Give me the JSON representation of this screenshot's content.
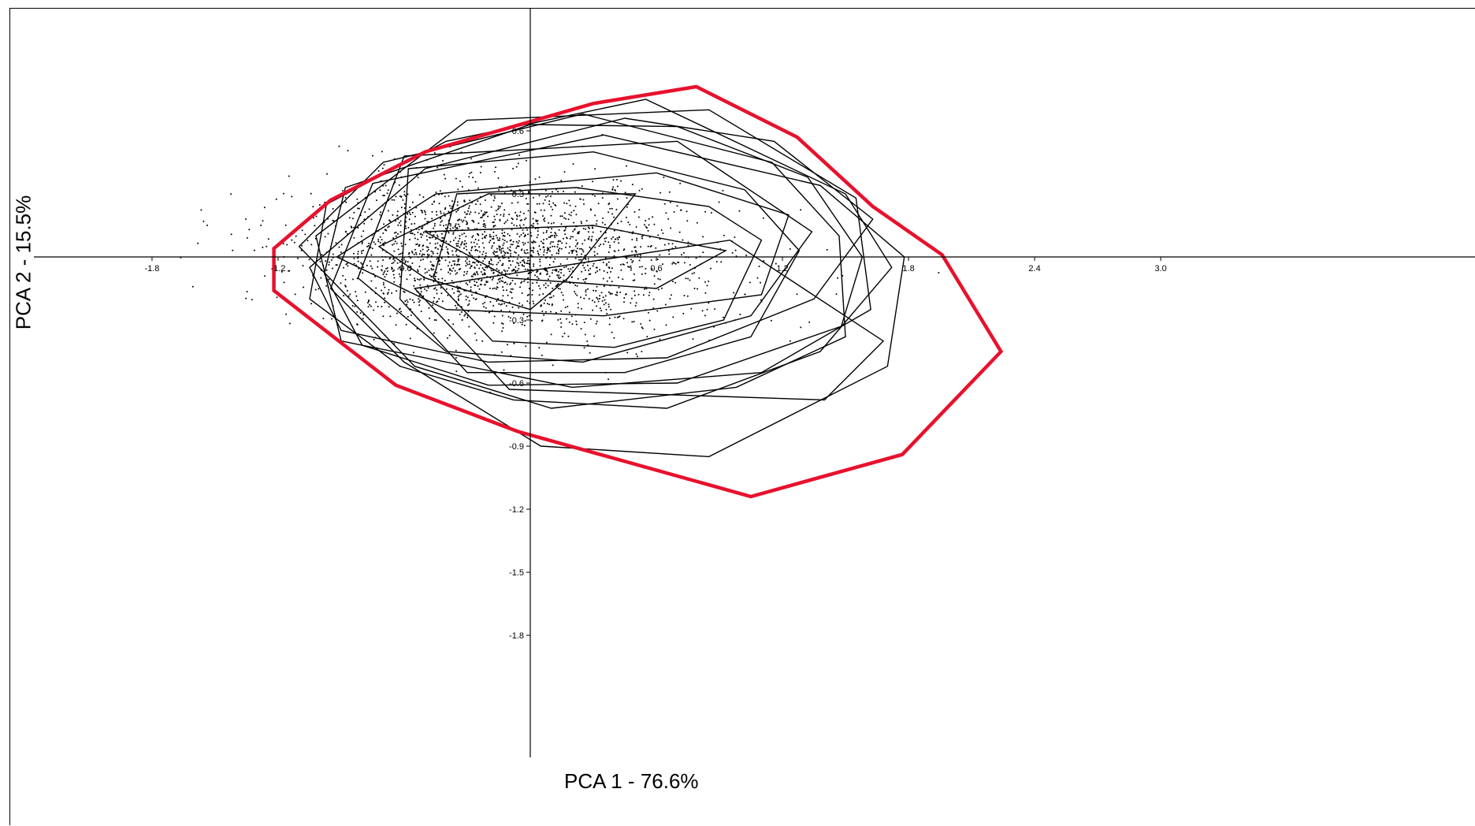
{
  "chart_data": {
    "type": "scatter",
    "title": "",
    "xlabel": "PCA 1 - 76.6%",
    "ylabel": "PCA 2 - 15.5%",
    "xlim": [
      -2.4,
      3.4
    ],
    "ylim": [
      -2.0,
      0.9
    ],
    "x_ticks": [
      "-1.8",
      "-1.2",
      "-0.6",
      "0.6",
      "1.2",
      "1.8",
      "2.4",
      "3.0"
    ],
    "y_ticks": [
      "0.6",
      "0.3",
      "-0.3",
      "-0.6",
      "-0.9",
      "-1.2",
      "-1.5",
      "-1.8"
    ],
    "grid": false,
    "legend": "none",
    "scatter_cloud": {
      "approx_points": 2200,
      "center": [
        -0.2,
        0.02
      ],
      "spread": [
        0.45,
        0.17
      ]
    },
    "hull_color": "#e8112d",
    "outer_hull": [
      [
        -1.22,
        0.04
      ],
      [
        -0.95,
        0.27
      ],
      [
        -0.5,
        0.5
      ],
      [
        0.3,
        0.73
      ],
      [
        0.79,
        0.81
      ],
      [
        1.27,
        0.57
      ],
      [
        1.63,
        0.24
      ],
      [
        1.96,
        0.01
      ],
      [
        2.24,
        -0.45
      ],
      [
        1.77,
        -0.94
      ],
      [
        1.05,
        -1.14
      ],
      [
        -0.06,
        -0.83
      ],
      [
        -0.64,
        -0.61
      ],
      [
        -1.22,
        -0.16
      ]
    ],
    "group_hulls": [
      [
        [
          -0.35,
          0.3
        ],
        [
          0.22,
          0.33
        ],
        [
          0.85,
          0.24
        ],
        [
          1.1,
          0.08
        ],
        [
          0.92,
          -0.3
        ],
        [
          0.4,
          -0.43
        ],
        [
          -0.18,
          -0.4
        ],
        [
          -0.46,
          -0.1
        ]
      ],
      [
        [
          -0.58,
          0.42
        ],
        [
          0.3,
          0.5
        ],
        [
          1.02,
          0.32
        ],
        [
          1.28,
          0.03
        ],
        [
          1.05,
          -0.38
        ],
        [
          0.45,
          -0.55
        ],
        [
          -0.3,
          -0.55
        ],
        [
          -0.62,
          -0.2
        ]
      ],
      [
        [
          -0.88,
          0.33
        ],
        [
          0.0,
          0.63
        ],
        [
          0.7,
          0.62
        ],
        [
          1.32,
          0.38
        ],
        [
          1.58,
          0.0
        ],
        [
          1.48,
          -0.33
        ],
        [
          0.7,
          -0.6
        ],
        [
          -0.2,
          -0.61
        ],
        [
          -0.8,
          -0.42
        ],
        [
          -0.98,
          -0.08
        ]
      ],
      [
        [
          -0.97,
          0.25
        ],
        [
          -0.4,
          0.55
        ],
        [
          0.55,
          0.75
        ],
        [
          1.5,
          0.3
        ],
        [
          1.72,
          -0.05
        ],
        [
          1.38,
          -0.45
        ],
        [
          0.65,
          -0.72
        ],
        [
          -0.08,
          -0.68
        ],
        [
          -0.62,
          -0.52
        ],
        [
          -1.05,
          -0.2
        ]
      ],
      [
        [
          -1.1,
          0.05
        ],
        [
          -0.7,
          0.45
        ],
        [
          0.25,
          0.68
        ],
        [
          1.15,
          0.45
        ],
        [
          1.47,
          0.1
        ],
        [
          1.5,
          -0.38
        ],
        [
          0.98,
          -0.62
        ],
        [
          0.1,
          -0.72
        ],
        [
          -0.55,
          -0.52
        ]
      ],
      [
        [
          -0.75,
          0.35
        ],
        [
          0.35,
          0.58
        ],
        [
          1.38,
          0.34
        ],
        [
          1.78,
          0.0
        ],
        [
          1.7,
          -0.52
        ],
        [
          0.85,
          -0.95
        ],
        [
          0.05,
          -0.9
        ],
        [
          -0.6,
          -0.5
        ],
        [
          -0.95,
          -0.15
        ]
      ],
      [
        [
          -0.6,
          0.48
        ],
        [
          0.7,
          0.55
        ],
        [
          1.34,
          0.12
        ],
        [
          1.05,
          -0.28
        ],
        [
          0.25,
          -0.5
        ],
        [
          -0.4,
          -0.45
        ],
        [
          -0.82,
          -0.1
        ]
      ],
      [
        [
          -0.92,
          0.0
        ],
        [
          -0.45,
          0.3
        ],
        [
          0.6,
          0.4
        ],
        [
          1.23,
          0.2
        ],
        [
          1.1,
          -0.18
        ],
        [
          0.35,
          -0.28
        ],
        [
          -0.4,
          -0.25
        ]
      ],
      [
        [
          -0.5,
          0.12
        ],
        [
          0.3,
          0.15
        ],
        [
          0.93,
          0.03
        ],
        [
          0.6,
          -0.15
        ],
        [
          -0.1,
          -0.1
        ]
      ],
      [
        [
          -1.05,
          -0.05
        ],
        [
          -0.5,
          0.42
        ],
        [
          0.45,
          0.66
        ],
        [
          1.16,
          0.55
        ],
        [
          1.63,
          0.18
        ],
        [
          1.35,
          -0.2
        ],
        [
          0.65,
          -0.48
        ],
        [
          -0.2,
          -0.5
        ],
        [
          -0.9,
          -0.35
        ]
      ],
      [
        [
          -0.72,
          0.05
        ],
        [
          -0.2,
          0.3
        ],
        [
          0.5,
          0.3
        ],
        [
          0.18,
          -0.1
        ],
        [
          0.0,
          -0.25
        ],
        [
          -0.5,
          -0.1
        ]
      ],
      [
        [
          -0.3,
          0.65
        ],
        [
          0.85,
          0.7
        ],
        [
          1.55,
          0.28
        ],
        [
          1.62,
          -0.25
        ],
        [
          1.1,
          -0.55
        ],
        [
          0.2,
          -0.62
        ],
        [
          -0.9,
          -0.4
        ],
        [
          -1.02,
          0.1
        ]
      ],
      [
        [
          -0.55,
          -0.15
        ],
        [
          0.95,
          0.08
        ],
        [
          1.68,
          -0.4
        ],
        [
          1.4,
          -0.68
        ],
        [
          -0.1,
          -0.63
        ]
      ]
    ]
  }
}
